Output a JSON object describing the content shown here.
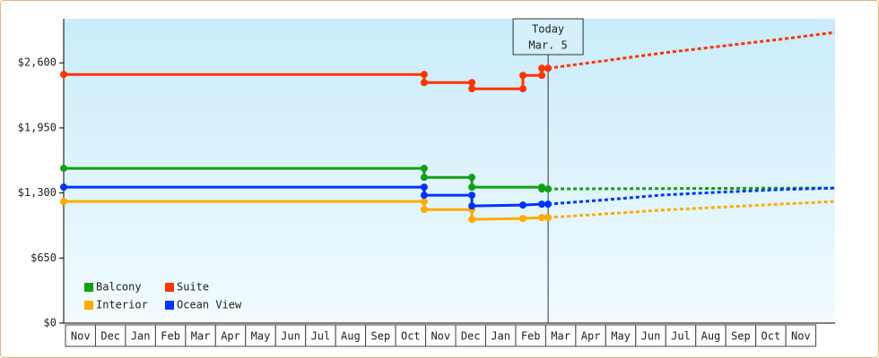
{
  "chart_data": {
    "type": "line",
    "categories": [
      "Nov",
      "Dec",
      "Jan",
      "Feb",
      "Mar",
      "Apr",
      "May",
      "Jun",
      "Jul",
      "Aug",
      "Sep",
      "Oct",
      "Nov",
      "Dec",
      "Jan",
      "Feb",
      "Mar",
      "Apr",
      "May",
      "Jun",
      "Jul",
      "Aug",
      "Sep",
      "Oct",
      "Nov"
    ],
    "xlim": [
      0,
      25.7
    ],
    "ylim": [
      0,
      3040
    ],
    "yticks": [
      {
        "value": 0,
        "label": "$0"
      },
      {
        "value": 650,
        "label": "$650"
      },
      {
        "value": 1300,
        "label": "$1,300"
      },
      {
        "value": 1950,
        "label": "$1,950"
      },
      {
        "value": 2600,
        "label": "$2,600"
      }
    ],
    "today": {
      "x": 16.14,
      "label": [
        "Today",
        "Mar. 5"
      ]
    },
    "series": [
      {
        "name": "Balcony",
        "color": "#11a011",
        "x": [
          0,
          12.01,
          12.01,
          13.6,
          13.6,
          15.93,
          15.93,
          16.14
        ],
        "values": [
          1546,
          1546,
          1456,
          1456,
          1358,
          1358,
          1340,
          1340
        ],
        "projection": {
          "x": [
            16.14,
            18,
            20,
            22,
            24,
            25.7
          ],
          "values": [
            1340,
            1342,
            1344,
            1346,
            1348,
            1349
          ]
        }
      },
      {
        "name": "Suite",
        "color": "#ff3300",
        "x": [
          0,
          12.01,
          12.01,
          13.6,
          13.6,
          15.3,
          15.3,
          15.93,
          15.93,
          16.14
        ],
        "values": [
          2484,
          2484,
          2403,
          2403,
          2341,
          2341,
          2475,
          2475,
          2546,
          2546
        ],
        "projection": {
          "x": [
            16.14,
            18,
            20,
            22,
            24,
            25.7
          ],
          "values": [
            2546,
            2620,
            2700,
            2770,
            2840,
            2904
          ]
        }
      },
      {
        "name": "Interior",
        "color": "#ffaa00",
        "x": [
          0,
          12.01,
          12.01,
          13.6,
          13.6,
          15.3,
          15.93,
          16.14
        ],
        "values": [
          1215,
          1215,
          1135,
          1135,
          1036,
          1045,
          1054,
          1054
        ],
        "projection": {
          "x": [
            16.14,
            18,
            20,
            22,
            24,
            25.7
          ],
          "values": [
            1054,
            1090,
            1130,
            1160,
            1190,
            1215
          ]
        }
      },
      {
        "name": "Ocean View",
        "color": "#0033ff",
        "x": [
          0,
          12.01,
          12.01,
          13.6,
          13.6,
          15.3,
          15.93,
          16.14
        ],
        "values": [
          1358,
          1358,
          1278,
          1278,
          1170,
          1179,
          1188,
          1188
        ],
        "projection": {
          "x": [
            16.14,
            18,
            20,
            22,
            24,
            25.7
          ],
          "values": [
            1188,
            1230,
            1280,
            1310,
            1335,
            1349
          ]
        }
      }
    ]
  }
}
